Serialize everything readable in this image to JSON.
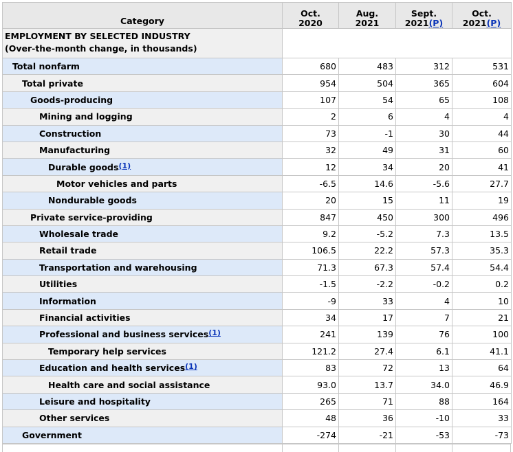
{
  "table": {
    "columns": {
      "category": "Category",
      "c1": {
        "top": "Oct.",
        "bottom": "2020",
        "p": ""
      },
      "c2": {
        "top": "Aug.",
        "bottom": "2021",
        "p": ""
      },
      "c3": {
        "top": "Sept.",
        "bottom": "2021",
        "p": "(P)"
      },
      "c4": {
        "top": "Oct.",
        "bottom": "2021",
        "p": "(P)"
      }
    },
    "section": {
      "line1": "EMPLOYMENT BY SELECTED INDUSTRY",
      "line2": "(Over-the-month change, in thousands)"
    },
    "rows": [
      {
        "label": "Total nonfarm",
        "footnote": "",
        "values": [
          "680",
          "483",
          "312",
          "531"
        ]
      },
      {
        "label": "Total private",
        "footnote": "",
        "values": [
          "954",
          "504",
          "365",
          "604"
        ]
      },
      {
        "label": "Goods-producing",
        "footnote": "",
        "values": [
          "107",
          "54",
          "65",
          "108"
        ]
      },
      {
        "label": "Mining and logging",
        "footnote": "",
        "values": [
          "2",
          "6",
          "4",
          "4"
        ]
      },
      {
        "label": "Construction",
        "footnote": "",
        "values": [
          "73",
          "-1",
          "30",
          "44"
        ]
      },
      {
        "label": "Manufacturing",
        "footnote": "",
        "values": [
          "32",
          "49",
          "31",
          "60"
        ]
      },
      {
        "label": "Durable goods",
        "footnote": "(1)",
        "values": [
          "12",
          "34",
          "20",
          "41"
        ]
      },
      {
        "label": "Motor vehicles and parts",
        "footnote": "",
        "values": [
          "-6.5",
          "14.6",
          "-5.6",
          "27.7"
        ]
      },
      {
        "label": "Nondurable goods",
        "footnote": "",
        "values": [
          "20",
          "15",
          "11",
          "19"
        ]
      },
      {
        "label": "Private service-providing",
        "footnote": "",
        "values": [
          "847",
          "450",
          "300",
          "496"
        ]
      },
      {
        "label": "Wholesale trade",
        "footnote": "",
        "values": [
          "9.2",
          "-5.2",
          "7.3",
          "13.5"
        ]
      },
      {
        "label": "Retail trade",
        "footnote": "",
        "values": [
          "106.5",
          "22.2",
          "57.3",
          "35.3"
        ]
      },
      {
        "label": "Transportation and warehousing",
        "footnote": "",
        "values": [
          "71.3",
          "67.3",
          "57.4",
          "54.4"
        ]
      },
      {
        "label": "Utilities",
        "footnote": "",
        "values": [
          "-1.5",
          "-2.2",
          "-0.2",
          "0.2"
        ]
      },
      {
        "label": "Information",
        "footnote": "",
        "values": [
          "-9",
          "33",
          "4",
          "10"
        ]
      },
      {
        "label": "Financial activities",
        "footnote": "",
        "values": [
          "34",
          "17",
          "7",
          "21"
        ]
      },
      {
        "label": "Professional and business services",
        "footnote": "(1)",
        "values": [
          "241",
          "139",
          "76",
          "100"
        ]
      },
      {
        "label": "Temporary help services",
        "footnote": "",
        "values": [
          "121.2",
          "27.4",
          "6.1",
          "41.1"
        ]
      },
      {
        "label": "Education and health services",
        "footnote": "(1)",
        "values": [
          "83",
          "72",
          "13",
          "64"
        ]
      },
      {
        "label": "Health care and social assistance",
        "footnote": "",
        "values": [
          "93.0",
          "13.7",
          "34.0",
          "46.9"
        ]
      },
      {
        "label": "Leisure and hospitality",
        "footnote": "",
        "values": [
          "265",
          "71",
          "88",
          "164"
        ]
      },
      {
        "label": "Other services",
        "footnote": "",
        "values": [
          "48",
          "36",
          "-10",
          "33"
        ]
      },
      {
        "label": "Government",
        "footnote": "",
        "values": [
          "-274",
          "-21",
          "-53",
          "-73"
        ]
      }
    ]
  }
}
